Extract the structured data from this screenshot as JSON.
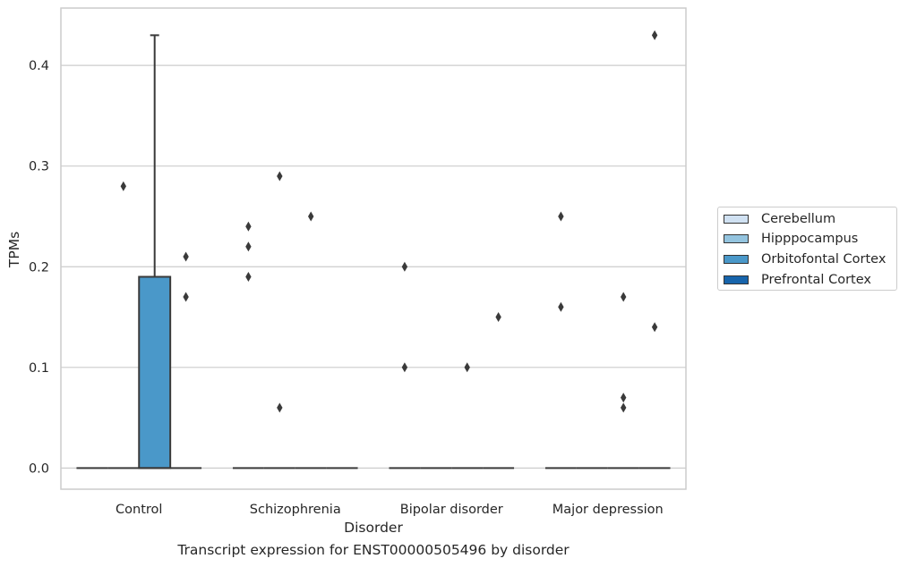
{
  "chart_data": {
    "type": "box",
    "xlabel": "Disorder",
    "ylabel": "TPMs",
    "ylim": [
      -0.021,
      0.457
    ],
    "yticks": [
      0.0,
      0.1,
      0.2,
      0.3,
      0.4
    ],
    "ytick_labels": [
      "0.0",
      "0.1",
      "0.2",
      "0.3",
      "0.4"
    ],
    "grid": true,
    "legend_placement": "right, outside plot",
    "categories": [
      "Control",
      "Schizophrenia",
      "Bipolar disorder",
      "Major depression"
    ],
    "series": [
      {
        "name": "Cerebellum",
        "color": "#d0e1f2"
      },
      {
        "name": "Hipppocampus",
        "color": "#94c4df"
      },
      {
        "name": "Orbitofontal Cortex",
        "color": "#4a98c9"
      },
      {
        "name": "Prefrontal Cortex",
        "color": "#1764ab"
      }
    ],
    "boxes": [
      {
        "category": 0,
        "series": 0,
        "min": 0,
        "q1": 0,
        "median": 0,
        "q3": 0,
        "max": 0
      },
      {
        "category": 0,
        "series": 1,
        "min": 0,
        "q1": 0,
        "median": 0,
        "q3": 0,
        "max": 0
      },
      {
        "category": 0,
        "series": 2,
        "min": 0,
        "q1": 0,
        "median": 0,
        "q3": 0.19,
        "max": 0.43
      },
      {
        "category": 0,
        "series": 3,
        "min": 0,
        "q1": 0,
        "median": 0,
        "q3": 0,
        "max": 0
      },
      {
        "category": 1,
        "series": 0,
        "min": 0,
        "q1": 0,
        "median": 0,
        "q3": 0,
        "max": 0
      },
      {
        "category": 1,
        "series": 1,
        "min": 0,
        "q1": 0,
        "median": 0,
        "q3": 0,
        "max": 0
      },
      {
        "category": 1,
        "series": 2,
        "min": 0,
        "q1": 0,
        "median": 0,
        "q3": 0,
        "max": 0
      },
      {
        "category": 1,
        "series": 3,
        "min": 0,
        "q1": 0,
        "median": 0,
        "q3": 0,
        "max": 0
      },
      {
        "category": 2,
        "series": 0,
        "min": 0,
        "q1": 0,
        "median": 0,
        "q3": 0,
        "max": 0
      },
      {
        "category": 2,
        "series": 1,
        "min": 0,
        "q1": 0,
        "median": 0,
        "q3": 0,
        "max": 0
      },
      {
        "category": 2,
        "series": 2,
        "min": 0,
        "q1": 0,
        "median": 0,
        "q3": 0,
        "max": 0
      },
      {
        "category": 2,
        "series": 3,
        "min": 0,
        "q1": 0,
        "median": 0,
        "q3": 0,
        "max": 0
      },
      {
        "category": 3,
        "series": 0,
        "min": 0,
        "q1": 0,
        "median": 0,
        "q3": 0,
        "max": 0
      },
      {
        "category": 3,
        "series": 1,
        "min": 0,
        "q1": 0,
        "median": 0,
        "q3": 0,
        "max": 0
      },
      {
        "category": 3,
        "series": 2,
        "min": 0,
        "q1": 0,
        "median": 0,
        "q3": 0,
        "max": 0
      },
      {
        "category": 3,
        "series": 3,
        "min": 0,
        "q1": 0,
        "median": 0,
        "q3": 0,
        "max": 0
      }
    ],
    "outliers": [
      {
        "category": 0,
        "series": 1,
        "y": 0.28
      },
      {
        "category": 0,
        "series": 3,
        "y": 0.21
      },
      {
        "category": 0,
        "series": 3,
        "y": 0.17
      },
      {
        "category": 1,
        "series": 0,
        "y": 0.24
      },
      {
        "category": 1,
        "series": 0,
        "y": 0.22
      },
      {
        "category": 1,
        "series": 0,
        "y": 0.19
      },
      {
        "category": 1,
        "series": 1,
        "y": 0.06
      },
      {
        "category": 1,
        "series": 1,
        "y": 0.29
      },
      {
        "category": 1,
        "series": 2,
        "y": 0.25
      },
      {
        "category": 2,
        "series": 0,
        "y": 0.2
      },
      {
        "category": 2,
        "series": 0,
        "y": 0.1
      },
      {
        "category": 2,
        "series": 2,
        "y": 0.1
      },
      {
        "category": 2,
        "series": 3,
        "y": 0.15
      },
      {
        "category": 3,
        "series": 0,
        "y": 0.25
      },
      {
        "category": 3,
        "series": 0,
        "y": 0.16
      },
      {
        "category": 3,
        "series": 2,
        "y": 0.17
      },
      {
        "category": 3,
        "series": 2,
        "y": 0.07
      },
      {
        "category": 3,
        "series": 2,
        "y": 0.06
      },
      {
        "category": 3,
        "series": 3,
        "y": 0.43
      },
      {
        "category": 3,
        "series": 3,
        "y": 0.14
      }
    ],
    "caption": "Transcript expression for ENST00000505496 by disorder"
  }
}
